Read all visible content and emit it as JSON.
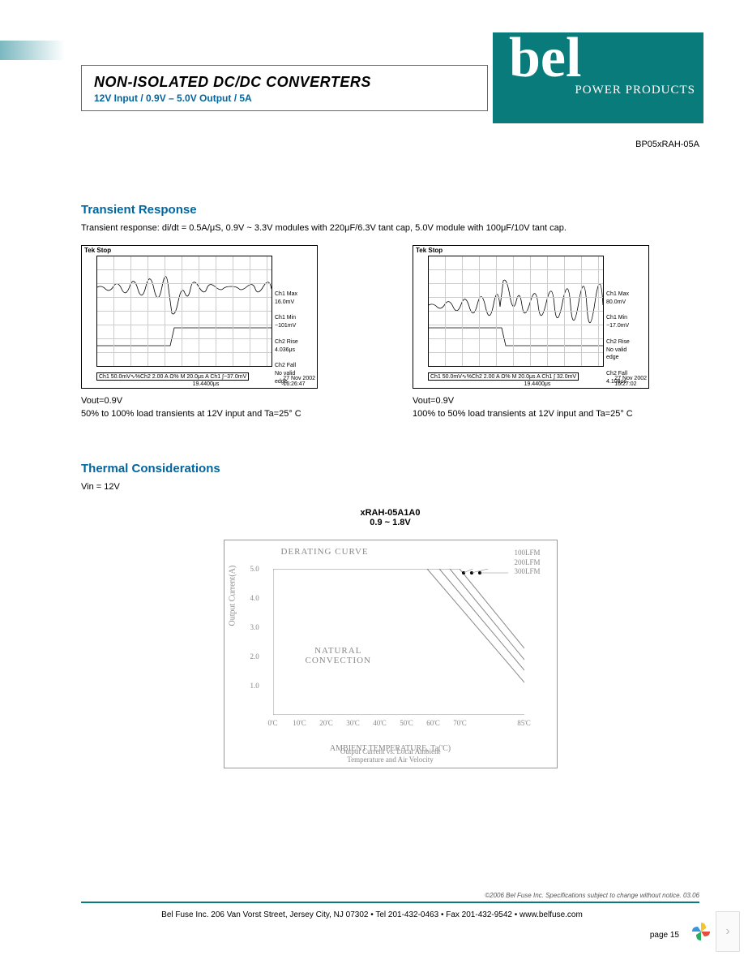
{
  "header": {
    "title": "NON-ISOLATED DC/DC CONVERTERS",
    "subtitle": "12V Input / 0.9V – 5.0V Output / 5A",
    "logo_text": "bel",
    "logo_sub": "POWER PRODUCTS",
    "part_number": "BP05xRAH-05A"
  },
  "transient": {
    "heading": "Transient Response",
    "desc": "Transient response: di/dt = 0.5A/μS, 0.9V ~ 3.3V modules with 220μF/6.3V tant cap, 5.0V module with 100μF/10V tant cap.",
    "scope_header": "Tek Stop",
    "left": {
      "info": {
        "ch1max": "Ch1 Max\n16.0mV",
        "ch1min": "Ch1 Min\n−101mV",
        "ch2rise": "Ch2 Rise\n4.036μs",
        "ch2fall": "Ch2 Fall\nNo valid\nedge"
      },
      "bottom_l": "Ch1  50.0mV∿%Ch2  2.00 A Ω% M 20.0μs  A  Ch1  ∫−37.0mV",
      "bottom_r": "19.4400μs",
      "date": "27 Nov 2002\n16:26:47",
      "vout": "Vout=0.9V",
      "caption": "50% to 100% load transients at 12V input and Ta=25° C"
    },
    "right": {
      "info": {
        "ch1max": "Ch1 Max\n80.0mV",
        "ch1min": "Ch1 Min\n−17.0mV",
        "ch2rise": "Ch2 Rise\nNo valid\nedge",
        "ch2fall": "Ch2 Fall\n4.108μs"
      },
      "bottom_l": "Ch1  50.0mV∿%Ch2  2.00 A Ω% M 20.0μs  A  Ch1  ∫ 32.0mV",
      "bottom_r": "19.4400μs",
      "date": "27 Nov 2002\n16:27:02",
      "vout": "Vout=0.9V",
      "caption": "100% to 50% load transients at 12V input and Ta=25° C"
    }
  },
  "thermal": {
    "heading": "Thermal Considerations",
    "vin": "Vin = 12V",
    "chart_model": "xRAH-05A1A0",
    "chart_range": "0.9 ~ 1.8V",
    "derating_label": "DERATING CURVE",
    "natural_convection": "NATURAL\nCONVECTION",
    "lfm": [
      "100LFM",
      "200LFM",
      "300LFM"
    ],
    "y_label": "Output Current(A)",
    "y_ticks": [
      "5.0",
      "4.0",
      "3.0",
      "2.0",
      "1.0"
    ],
    "x_ticks": [
      "0'C",
      "10'C",
      "20'C",
      "30'C",
      "40'C",
      "50'C",
      "60'C",
      "70'C",
      "",
      "85'C"
    ],
    "x_label": "AMBIENT TEMPERATURE, Ta('C)",
    "x_sublabel": "Output Current vs. Local Ambient\nTemperature and Air Velocity",
    "lines": [
      [
        [
          0,
          0
        ],
        [
          190,
          0
        ],
        [
          310,
          140
        ]
      ],
      [
        [
          0,
          0
        ],
        [
          205,
          0
        ],
        [
          310,
          125
        ]
      ],
      [
        [
          0,
          0
        ],
        [
          218,
          0
        ],
        [
          310,
          112
        ]
      ],
      [
        [
          0,
          0
        ],
        [
          230,
          0
        ],
        [
          310,
          98
        ]
      ]
    ],
    "colors": {
      "axis": "#999",
      "line": "#888"
    }
  },
  "footer": {
    "copyright": "©2006 Bel Fuse Inc.   Specifications subject to change without notice.  03.06",
    "address": "Bel Fuse Inc.  206 Van Vorst Street, Jersey City, NJ 07302 • Tel 201-432-0463 • Fax 201-432-9542 • www.belfuse.com",
    "page": "page 15"
  }
}
